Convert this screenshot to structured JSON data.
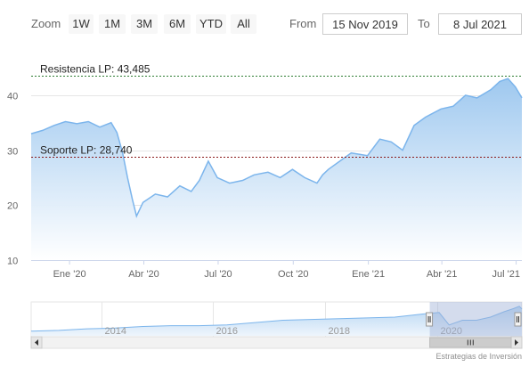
{
  "range_selector": {
    "zoom_label": "Zoom",
    "buttons": [
      "1W",
      "1M",
      "3M",
      "6M",
      "YTD",
      "All"
    ],
    "from_label": "From",
    "from_value": "15 Nov 2019",
    "to_label": "To",
    "to_value": "8 Jul 2021"
  },
  "credits": "Estrategias de Inversión",
  "colors": {
    "series_line": "#7cb5ec",
    "area_top": "#9ec8ef",
    "area_bottom": "#ffffff",
    "resistance_line": "#2e7d32",
    "support_line": "#8b1a1a",
    "grid": "#e6e6e6",
    "navigator_mask": "#9fb2d6"
  },
  "chart_data": {
    "type": "area",
    "x_range": [
      "2019-11-15",
      "2021-07-08"
    ],
    "ylim": [
      10,
      45
    ],
    "y_ticks": [
      10,
      20,
      30,
      40
    ],
    "x_ticks": [
      {
        "label": "Ene '20",
        "date": "2020-01-01"
      },
      {
        "label": "Abr '20",
        "date": "2020-04-01"
      },
      {
        "label": "Jul '20",
        "date": "2020-07-01"
      },
      {
        "label": "Oct '20",
        "date": "2020-10-01"
      },
      {
        "label": "Ene '21",
        "date": "2021-01-01"
      },
      {
        "label": "Abr '21",
        "date": "2021-04-01"
      },
      {
        "label": "Jul '21",
        "date": "2021-07-01"
      }
    ],
    "grid": true,
    "series": [
      {
        "x": [
          "2019-11-15",
          "2019-11-29",
          "2019-12-13",
          "2019-12-27",
          "2020-01-10",
          "2020-01-24",
          "2020-02-07",
          "2020-02-21",
          "2020-02-28",
          "2020-03-06",
          "2020-03-12",
          "2020-03-18",
          "2020-03-23",
          "2020-03-31",
          "2020-04-15",
          "2020-04-30",
          "2020-05-15",
          "2020-05-29",
          "2020-06-08",
          "2020-06-19",
          "2020-06-30",
          "2020-07-15",
          "2020-07-31",
          "2020-08-14",
          "2020-08-31",
          "2020-09-15",
          "2020-09-30",
          "2020-10-15",
          "2020-10-30",
          "2020-11-06",
          "2020-11-13",
          "2020-11-27",
          "2020-12-11",
          "2020-12-31",
          "2021-01-15",
          "2021-01-29",
          "2021-02-12",
          "2021-02-26",
          "2021-03-12",
          "2021-03-31",
          "2021-04-15",
          "2021-04-30",
          "2021-05-14",
          "2021-05-31",
          "2021-06-11",
          "2021-06-21",
          "2021-06-30",
          "2021-07-08"
        ],
        "y": [
          33.0,
          33.6,
          34.5,
          35.2,
          34.8,
          35.2,
          34.2,
          35.0,
          33.2,
          29.5,
          25.0,
          21.0,
          18.0,
          20.5,
          22.0,
          21.5,
          23.5,
          22.5,
          24.5,
          28.0,
          25.0,
          24.0,
          24.5,
          25.5,
          26.0,
          25.0,
          26.5,
          25.0,
          24.0,
          25.5,
          26.5,
          28.0,
          29.5,
          29.0,
          32.0,
          31.5,
          30.0,
          34.5,
          36.0,
          37.5,
          38.0,
          40.0,
          39.5,
          41.0,
          42.5,
          43.0,
          41.5,
          39.5
        ]
      }
    ],
    "annotations": [
      {
        "label": "Resistencia LP: 43,485",
        "value": 43.485
      },
      {
        "label": "Soporte LP: 28,740",
        "value": 28.74
      }
    ],
    "navigator": {
      "x_range": [
        "2012-10-01",
        "2021-07-08"
      ],
      "labels": [
        {
          "label": "2014",
          "date": "2014-01-01"
        },
        {
          "label": "2016",
          "date": "2016-01-01"
        },
        {
          "label": "2018",
          "date": "2018-01-01"
        },
        {
          "label": "2020",
          "date": "2020-01-01"
        }
      ],
      "ylim": [
        5,
        45
      ],
      "x": [
        "2012-10-01",
        "2013-04-01",
        "2013-10-01",
        "2014-04-01",
        "2014-10-01",
        "2015-04-01",
        "2015-10-01",
        "2016-04-01",
        "2016-10-01",
        "2017-04-01",
        "2017-10-01",
        "2018-04-01",
        "2018-10-01",
        "2019-04-01",
        "2019-10-01",
        "2020-01-15",
        "2020-03-20",
        "2020-06-15",
        "2020-09-15",
        "2020-12-15",
        "2021-03-15",
        "2021-05-15",
        "2021-06-21",
        "2021-07-08"
      ],
      "y": [
        11,
        12,
        14,
        15,
        17,
        18,
        18,
        19,
        22,
        25,
        26,
        27,
        28,
        29,
        33,
        35,
        19,
        25,
        25,
        29,
        36,
        40,
        43,
        39.5
      ],
      "selection": [
        "2019-11-15",
        "2021-07-08"
      ]
    }
  }
}
